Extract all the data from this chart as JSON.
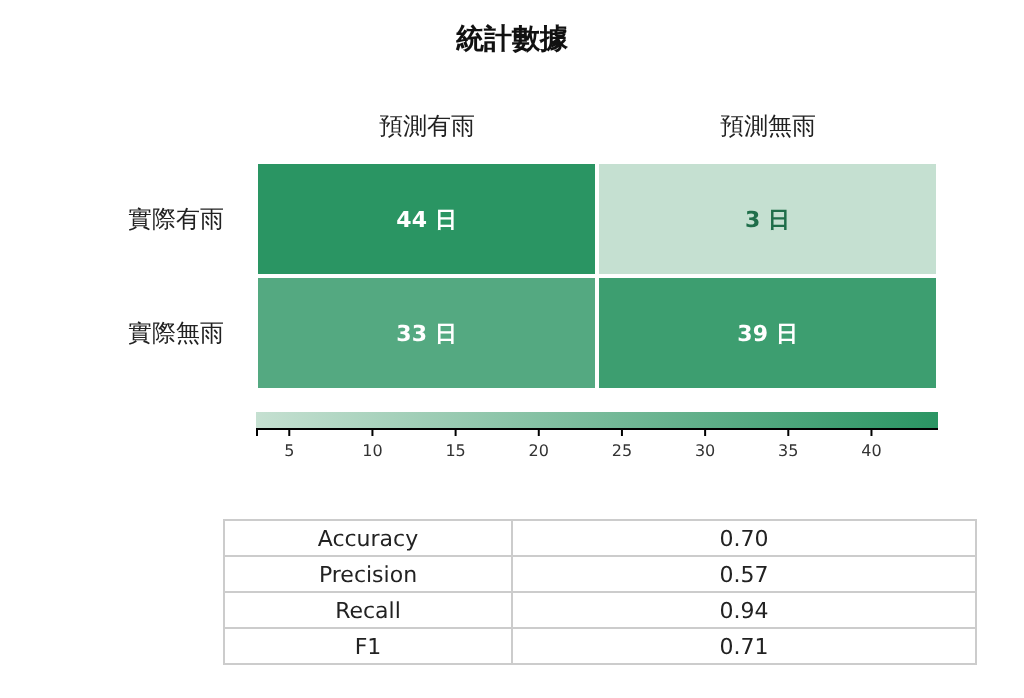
{
  "chart_data": [
    {
      "type": "heatmap",
      "title": "統計數據",
      "categories": [
        "預測有雨",
        "預測無雨"
      ],
      "y_categories": [
        "實際有雨",
        "實際無雨"
      ],
      "cells": [
        [
          44,
          3
        ],
        [
          33,
          39
        ]
      ],
      "cell_labels": [
        [
          "44 日",
          "3 日"
        ],
        [
          "33 日",
          "39 日"
        ]
      ],
      "clim": [
        3,
        44
      ],
      "cticks": [
        5,
        10,
        15,
        20,
        25,
        30,
        35,
        40
      ]
    },
    {
      "type": "other",
      "categories": [
        "Accuracy",
        "Precision",
        "Recall",
        "F1"
      ],
      "value_labels": [
        "0.70",
        "0.57",
        "0.94",
        "0.71"
      ]
    }
  ]
}
